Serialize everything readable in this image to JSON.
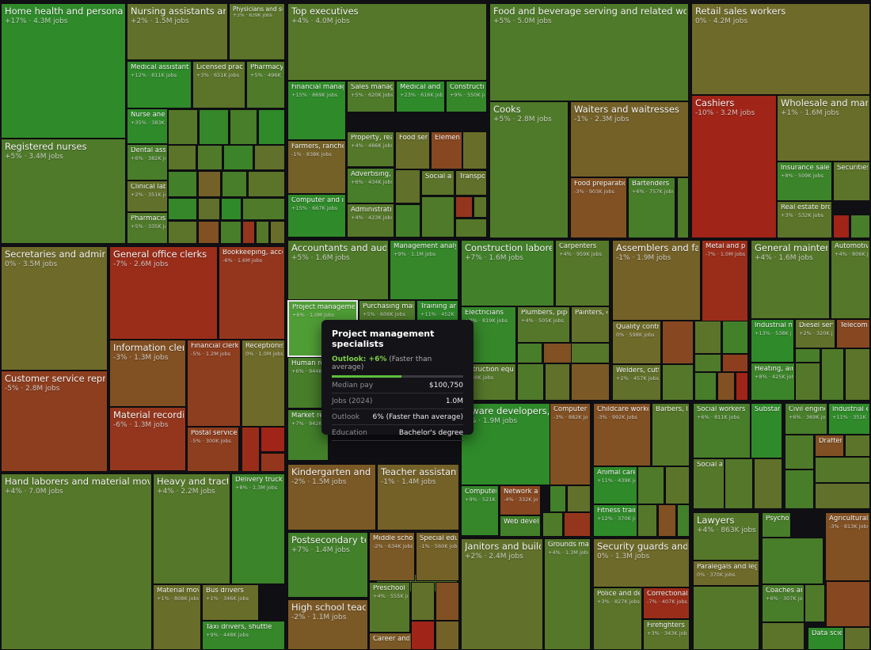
{
  "chart_data": {
    "type": "treemap",
    "value_field": "employment (2024)",
    "color_field": "projected growth",
    "colors": {
      "growth_high": "#2f8a2a",
      "neutral": "#6e6a2a",
      "decline": "#a02418"
    },
    "items": [
      {
        "label": "Home health and personal care",
        "sub": "+17% · 4.3M jobs",
        "growth": 17
      },
      {
        "label": "Registered nurses",
        "sub": "+5% · 3.4M jobs",
        "growth": 5
      },
      {
        "label": "Nursing assistants and orderlies",
        "sub": "+2% · 1.5M jobs",
        "growth": 2
      },
      {
        "label": "Physicians and surgeons",
        "sub": "+3% · 839K jobs",
        "growth": 3
      },
      {
        "label": "Medical assistants",
        "sub": "+12% · 811K jobs",
        "growth": 12
      },
      {
        "label": "Licensed practical",
        "sub": "+3% · 651K jobs",
        "growth": 3
      },
      {
        "label": "Pharmacy tec",
        "sub": "+5% · 496K jobs",
        "growth": 5
      },
      {
        "label": "Nurse anesthe",
        "sub": "+35% · 383K jobs",
        "growth": 35
      },
      {
        "label": "Dental assista",
        "sub": "+6% · 382K jobs",
        "growth": 6
      },
      {
        "label": "Clinical labora",
        "sub": "+2% · 351K jobs",
        "growth": 2
      },
      {
        "label": "Pharmacists",
        "sub": "+5% · 335K jobs",
        "growth": 5
      },
      {
        "label": "Top executives",
        "sub": "+4% · 4.0M jobs",
        "growth": 4
      },
      {
        "label": "Financial managers",
        "sub": "+15% · 869K jobs",
        "growth": 15
      },
      {
        "label": "Sales managers",
        "sub": "+5% · 620K jobs",
        "growth": 5
      },
      {
        "label": "Medical and hea",
        "sub": "+23% · 616K jobs",
        "growth": 23
      },
      {
        "label": "Construction m",
        "sub": "+9% · 550K jobs",
        "growth": 9
      },
      {
        "label": "Farmers, ranchers, a",
        "sub": "-1% · 838K jobs",
        "growth": -1
      },
      {
        "label": "Property, real es",
        "sub": "+4% · 486K jobs",
        "growth": 4
      },
      {
        "label": "Food servic",
        "sub": "",
        "growth": 1
      },
      {
        "label": "Elementar",
        "sub": "",
        "growth": -4
      },
      {
        "label": "Advertising, pro",
        "sub": "+6% · 434K jobs",
        "growth": 6
      },
      {
        "label": "Social and",
        "sub": "",
        "growth": 3
      },
      {
        "label": "Transport",
        "sub": "",
        "growth": 2
      },
      {
        "label": "Computer and infor",
        "sub": "+15% · 667K jobs",
        "growth": 15
      },
      {
        "label": "Administrative s",
        "sub": "+4% · 423K jobs",
        "growth": 4
      },
      {
        "label": "Food and beverage serving and related workers",
        "sub": "+5% · 5.0M jobs",
        "growth": 5
      },
      {
        "label": "Cooks",
        "sub": "+5% · 2.8M jobs",
        "growth": 5
      },
      {
        "label": "Waiters and waitresses",
        "sub": "-1% · 2.3M jobs",
        "growth": -1
      },
      {
        "label": "Food preparation w",
        "sub": "-3% · 903K jobs",
        "growth": -3
      },
      {
        "label": "Bartenders",
        "sub": "+6% · 757K jobs",
        "growth": 6
      },
      {
        "label": "Retail sales workers",
        "sub": "0% · 4.2M jobs",
        "growth": 0
      },
      {
        "label": "Cashiers",
        "sub": "-10% · 3.2M jobs",
        "growth": -10
      },
      {
        "label": "Wholesale and manufac",
        "sub": "+1% · 1.6M jobs",
        "growth": 1
      },
      {
        "label": "Insurance sales age",
        "sub": "+8% · 509K jobs",
        "growth": 8
      },
      {
        "label": "Securities, c",
        "sub": "",
        "growth": 3
      },
      {
        "label": "Real estate brokers",
        "sub": "+3% · 532K jobs",
        "growth": 3
      },
      {
        "label": "Secretaries and administrat",
        "sub": "0% · 3.5M jobs",
        "growth": 0
      },
      {
        "label": "General office clerks",
        "sub": "-7% · 2.6M jobs",
        "growth": -7
      },
      {
        "label": "Bookkeeping, accou",
        "sub": "-6% · 1.6M jobs",
        "growth": -6
      },
      {
        "label": "Customer service represent",
        "sub": "-5% · 2.8M jobs",
        "growth": -5
      },
      {
        "label": "Information clerks",
        "sub": "-3% · 1.3M jobs",
        "growth": -3
      },
      {
        "label": "Financial clerks",
        "sub": "-5% · 1.2M jobs",
        "growth": -5
      },
      {
        "label": "Receptionists",
        "sub": "0% · 1.0M jobs",
        "growth": 0
      },
      {
        "label": "Material recording cl",
        "sub": "-6% · 1.3M jobs",
        "growth": -6
      },
      {
        "label": "Postal service",
        "sub": "-5% · 300K jobs",
        "growth": -5
      },
      {
        "label": "Accountants and auditors",
        "sub": "+5% · 1.6M jobs",
        "growth": 5
      },
      {
        "label": "Management analys",
        "sub": "+9% · 1.1M jobs",
        "growth": 9
      },
      {
        "label": "Project managemen",
        "sub": "+6% · 1.0M jobs",
        "growth": 6
      },
      {
        "label": "Purchasing manage",
        "sub": "+5% · 606K jobs",
        "growth": 5
      },
      {
        "label": "Training and d",
        "sub": "+11% · 452K jobs",
        "growth": 11
      },
      {
        "label": "Human re",
        "sub": "+6% · 944K jobs",
        "growth": 6
      },
      {
        "label": "Market re",
        "sub": "+7% · 942K jobs",
        "growth": 7
      },
      {
        "label": "Construction laborers a",
        "sub": "+7% · 1.6M jobs",
        "growth": 7
      },
      {
        "label": "Carpenters",
        "sub": "+4% · 959K jobs",
        "growth": 4
      },
      {
        "label": "Electricians",
        "sub": "+9% · 819K jobs",
        "growth": 9
      },
      {
        "label": "Plumbers, pipefitte",
        "sub": "+4% · 505K jobs",
        "growth": 4
      },
      {
        "label": "Painters, con",
        "sub": "",
        "growth": 2
      },
      {
        "label": "nstruction equip",
        "sub": "· 540K jobs",
        "growth": 4
      },
      {
        "label": "Assemblers and fabric",
        "sub": "-1% · 1.9M jobs",
        "growth": -1
      },
      {
        "label": "Metal and plast",
        "sub": "-7% · 1.0M jobs",
        "growth": -7
      },
      {
        "label": "Quality control in",
        "sub": "0% · 598K jobs",
        "growth": 0
      },
      {
        "label": "Welders, cutters,",
        "sub": "+2% · 457K jobs",
        "growth": 2
      },
      {
        "label": "General maintenanc",
        "sub": "+4% · 1.6M jobs",
        "growth": 4
      },
      {
        "label": "Automotive",
        "sub": "+4% · 806K jobs",
        "growth": 4
      },
      {
        "label": "Industrial mach",
        "sub": "+13% · 538K jobs",
        "growth": 13
      },
      {
        "label": "Diesel service",
        "sub": "+2% · 320K jobs",
        "growth": 2
      },
      {
        "label": "Telecomm",
        "sub": "",
        "growth": -4
      },
      {
        "label": "Heating, air co",
        "sub": "+8% · 425K jobs",
        "growth": 8
      },
      {
        "label": "ftware developers,",
        "sub": "5% · 1.9M jobs",
        "growth": 15
      },
      {
        "label": "Computer sup",
        "sub": "-3% · 882K jobs",
        "growth": -3
      },
      {
        "label": "Computer sy",
        "sub": "+9% · 521K jobs",
        "growth": 9
      },
      {
        "label": "Network and",
        "sub": "-4% · 332K jobs",
        "growth": -4
      },
      {
        "label": "Web develop",
        "sub": "",
        "growth": 7
      },
      {
        "label": "Childcare workers",
        "sub": "-3% · 992K jobs",
        "growth": -3
      },
      {
        "label": "Barbers, hair",
        "sub": "",
        "growth": 4
      },
      {
        "label": "Animal care an",
        "sub": "+11% · 439K jobs",
        "growth": 11
      },
      {
        "label": "Fitness trainer",
        "sub": "+12% · 370K jobs",
        "growth": 12
      },
      {
        "label": "Social workers",
        "sub": "+6% · 811K jobs",
        "growth": 6
      },
      {
        "label": "Substance",
        "sub": "",
        "growth": 17
      },
      {
        "label": "Social and",
        "sub": "",
        "growth": 4
      },
      {
        "label": "Civil engineers",
        "sub": "+6% · 369K jobs",
        "growth": 6
      },
      {
        "label": "Industrial engi",
        "sub": "+11% · 351K jobs",
        "growth": 11
      },
      {
        "label": "Drafters",
        "sub": "",
        "growth": -3
      },
      {
        "label": "Hand laborers and material movers",
        "sub": "+4% · 7.0M jobs",
        "growth": 4
      },
      {
        "label": "Heavy and tractor-tr",
        "sub": "+4% · 2.2M jobs",
        "growth": 4
      },
      {
        "label": "Delivery truck driv",
        "sub": "+8% · 1.3M jobs",
        "growth": 8
      },
      {
        "label": "Material moving",
        "sub": "+1% · 808K jobs",
        "growth": 1
      },
      {
        "label": "Bus drivers",
        "sub": "+1% · 346K jobs",
        "growth": 1
      },
      {
        "label": "Taxi drivers, shuttle",
        "sub": "+9% · 448K jobs",
        "growth": 9
      },
      {
        "label": "Kindergarten and elen",
        "sub": "-2% · 1.5M jobs",
        "growth": -2
      },
      {
        "label": "Teacher assistants",
        "sub": "-1% · 1.4M jobs",
        "growth": -1
      },
      {
        "label": "Postsecondary teach",
        "sub": "+7% · 1.4M jobs",
        "growth": 7
      },
      {
        "label": "Middle school te",
        "sub": "-2% · 634K jobs",
        "growth": -2
      },
      {
        "label": "Special educa",
        "sub": "-1% · 560K jobs",
        "growth": -1
      },
      {
        "label": "Preschool teac",
        "sub": "+4% · 555K jobs",
        "growth": 4
      },
      {
        "label": "High school teachers",
        "sub": "-2% · 1.1M jobs",
        "growth": -2
      },
      {
        "label": "Career and tec",
        "sub": "",
        "growth": -2
      },
      {
        "label": "Janitors and building",
        "sub": "+2% · 2.4M jobs",
        "growth": 2
      },
      {
        "label": "Grounds mainte",
        "sub": "+4% · 1.3M jobs",
        "growth": 4
      },
      {
        "label": "Security guards and gam",
        "sub": "0% · 1.3M jobs",
        "growth": 0
      },
      {
        "label": "Police and detec",
        "sub": "+3% · 827K jobs",
        "growth": 3
      },
      {
        "label": "Correctional off",
        "sub": "-7% · 407K jobs",
        "growth": -7
      },
      {
        "label": "Firefighters",
        "sub": "+3% · 343K jobs",
        "growth": 3
      },
      {
        "label": "Lawyers",
        "sub": "+4% · 863K jobs",
        "growth": 4
      },
      {
        "label": "Paralegals and lega",
        "sub": "0% · 370K jobs",
        "growth": 0
      },
      {
        "label": "Psycholog",
        "sub": "",
        "growth": 6
      },
      {
        "label": "Agricultural wo",
        "sub": "-3% · 813K jobs",
        "growth": -3
      },
      {
        "label": "Coaches and s",
        "sub": "+6% · 307K jobs",
        "growth": 6
      },
      {
        "label": "Data scienti",
        "sub": "",
        "growth": 34
      }
    ]
  },
  "tooltip": {
    "title": "Project management specialists",
    "outlook_label": "Outlook: +6%",
    "outlook_detail": "(Faster than average)",
    "outlook_fraction": 0.53,
    "rows": [
      {
        "key": "Median pay",
        "value": "$100,750"
      },
      {
        "key": "Jobs (2024)",
        "value": "1.0M"
      },
      {
        "key": "Outlook",
        "value": "6% (Faster than average)"
      },
      {
        "key": "Education",
        "value": "Bachelor's degree"
      }
    ]
  }
}
